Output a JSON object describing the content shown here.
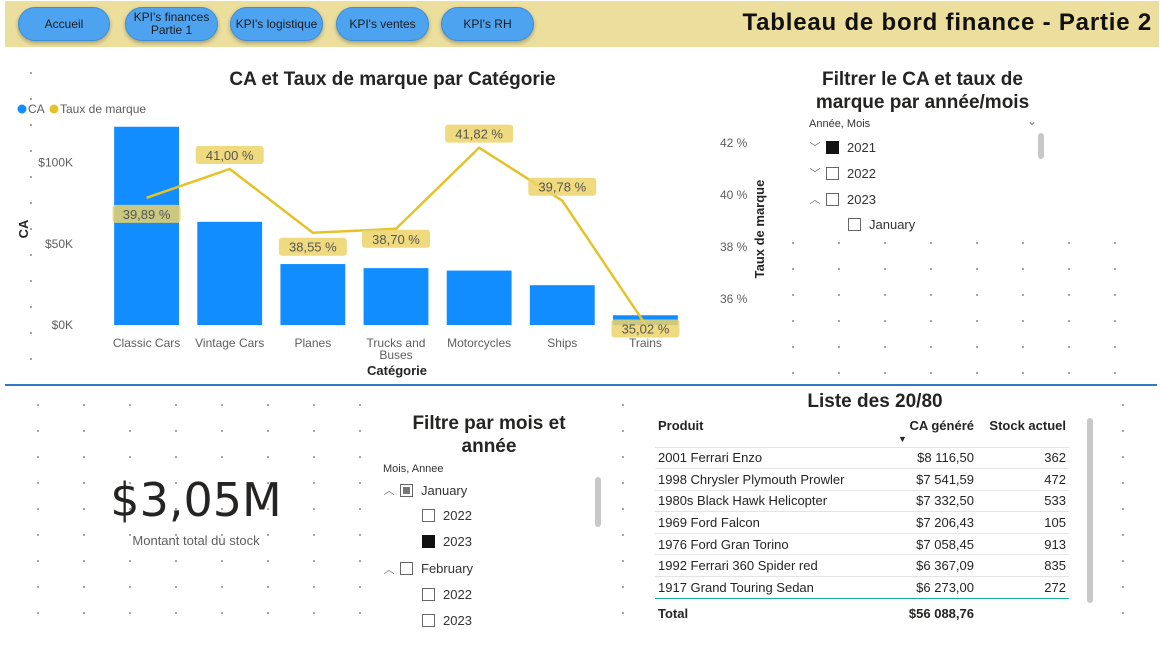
{
  "nav": {
    "buttons": [
      "Accueil",
      "KPI's finances Partie 1",
      "KPI's logistique",
      "KPI's ventes",
      "KPI's RH"
    ]
  },
  "page_title": "Tableau de bord finance - Partie 2",
  "combo_chart": {
    "title": "CA et Taux de marque par Catégorie",
    "legend": [
      "CA",
      "Taux de marque"
    ],
    "y_left_label": "CA",
    "y_right_label": "Taux de marque",
    "x_label": "Catégorie",
    "y_left_ticks": [
      "$0K",
      "$50K",
      "$100K"
    ],
    "y_right_ticks": [
      "36 %",
      "38 %",
      "40 %",
      "42 %"
    ]
  },
  "chart_data": {
    "type": "bar",
    "title": "CA et Taux de marque par Catégorie",
    "categories": [
      "Classic Cars",
      "Vintage Cars",
      "Planes",
      "Trucks and Buses",
      "Motorcycles",
      "Ships",
      "Trains"
    ],
    "xlabel": "Catégorie",
    "ylabel": "CA",
    "ylim": [
      0,
      120000
    ],
    "y2label": "Taux de marque",
    "y2lim": [
      35,
      42.5
    ],
    "series": [
      {
        "name": "CA",
        "type": "bar",
        "values": [
          122000,
          63500,
          37500,
          35000,
          33500,
          24500,
          6000
        ],
        "color": "#118dff"
      },
      {
        "name": "Taux de marque",
        "type": "line",
        "axis": "right",
        "values": [
          39.89,
          41.0,
          38.55,
          38.7,
          41.82,
          39.78,
          35.02
        ],
        "labels": [
          "39,89 %",
          "41,00 %",
          "38,55 %",
          "38,70 %",
          "41,82 %",
          "39,78 %",
          "35,02 %"
        ],
        "color": "#e6c229"
      }
    ],
    "legend_position": "top-left",
    "grid": false
  },
  "slicer_top": {
    "title": "Filtrer le CA et taux de marque par année/mois",
    "header": "Année, Mois",
    "items": [
      {
        "label": "2021",
        "expanded": false,
        "state": "checked"
      },
      {
        "label": "2022",
        "expanded": false,
        "state": "unchecked"
      },
      {
        "label": "2023",
        "expanded": true,
        "state": "unchecked"
      },
      {
        "label": "January",
        "child": true,
        "state": "unchecked"
      }
    ]
  },
  "card": {
    "value": "$3,05M",
    "label": "Montant total du stock"
  },
  "slicer_bottom": {
    "title": "Filtre par mois et année",
    "header": "Mois, Annee",
    "items": [
      {
        "label": "January",
        "expanded": true,
        "state": "partial"
      },
      {
        "label": "2022",
        "child": true,
        "state": "unchecked"
      },
      {
        "label": "2023",
        "child": true,
        "state": "checked"
      },
      {
        "label": "February",
        "expanded": true,
        "state": "unchecked"
      },
      {
        "label": "2022",
        "child": true,
        "state": "unchecked"
      },
      {
        "label": "2023",
        "child": true,
        "state": "unchecked"
      }
    ]
  },
  "table": {
    "title": "Liste des 20/80",
    "columns": [
      "Produit",
      "CA généré",
      "Stock actuel"
    ],
    "rows": [
      [
        "2001 Ferrari Enzo",
        "$8 116,50",
        "362"
      ],
      [
        "1998 Chrysler Plymouth Prowler",
        "$7 541,59",
        "472"
      ],
      [
        "1980s Black Hawk Helicopter",
        "$7 332,50",
        "533"
      ],
      [
        "1969 Ford Falcon",
        "$7 206,43",
        "105"
      ],
      [
        "1976 Ford Gran Torino",
        "$7 058,45",
        "913"
      ],
      [
        "1992 Ferrari 360 Spider red",
        "$6 367,09",
        "835"
      ],
      [
        "1917 Grand Touring Sedan",
        "$6 273,00",
        "272"
      ]
    ],
    "total_label": "Total",
    "total_value": "$56 088,76"
  },
  "colors": {
    "bar": "#118dff",
    "line": "#e6c229",
    "topbar": "#ecdf9e",
    "nav_button": "#4ea3f0",
    "divider": "#2f79c6"
  }
}
